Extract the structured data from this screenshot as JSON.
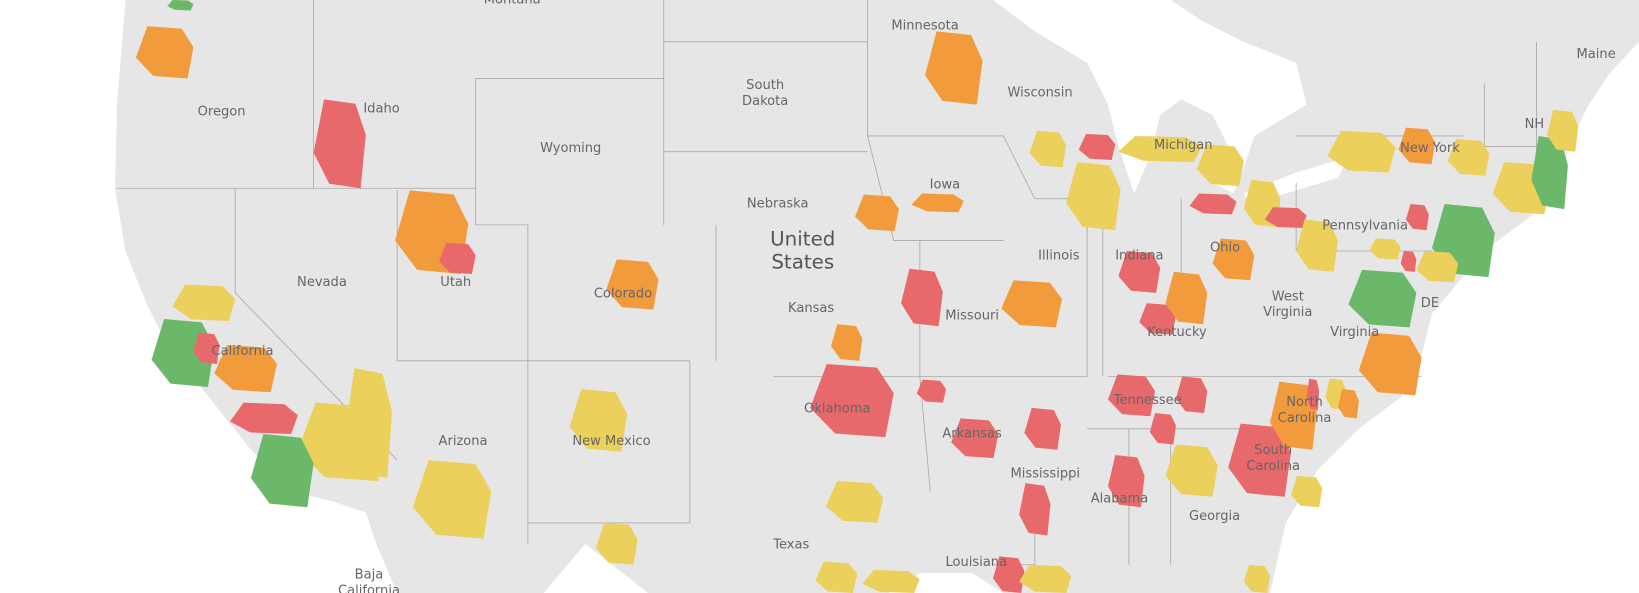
{
  "map": {
    "labels": [
      "Montana",
      "Minnesota",
      "South Dakota",
      "Wisconsin",
      "Oregon",
      "Idaho",
      "Wyoming",
      "Michigan",
      "Iowa",
      "Nebraska",
      "United States",
      "Nevada",
      "Illinois",
      "Indiana",
      "Ohio",
      "Pennsylvania",
      "New York",
      "NH",
      "Maine",
      "Utah",
      "Colorado",
      "Kansas",
      "Missouri",
      "West Virginia",
      "Kentucky",
      "Virginia",
      "DE",
      "California",
      "Tennessee",
      "North Carolina",
      "Oklahoma",
      "Arkansas",
      "Arizona",
      "New Mexico",
      "Mississippi",
      "Alabama",
      "South Carolina",
      "Georgia",
      "Texas",
      "Louisiana",
      "Baja California"
    ]
  }
}
